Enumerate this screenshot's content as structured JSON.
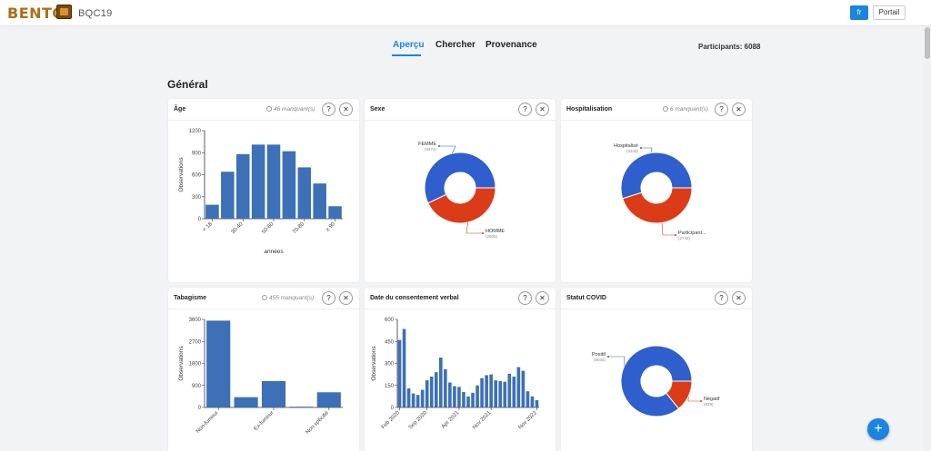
{
  "header": {
    "logo": "BENTO",
    "app_name": "BQC19",
    "lang_button": "fr",
    "portal_button": "Portail"
  },
  "tabs": [
    {
      "label": "Aperçu",
      "active": true
    },
    {
      "label": "Chercher",
      "active": false
    },
    {
      "label": "Provenance",
      "active": false
    }
  ],
  "participants": "Participants: 6088",
  "section_title": "Général",
  "colors": {
    "bar": "#3d70b6",
    "pie_blue": "#2f5fcc",
    "pie_red": "#dc3b17",
    "accent": "#1a84e0"
  },
  "cards": {
    "age": {
      "title": "Âge",
      "missing": "46 manquant(s)"
    },
    "sexe": {
      "title": "Sexe"
    },
    "hosp": {
      "title": "Hospitalisation",
      "missing": "6 manquant(s)"
    },
    "tabac": {
      "title": "Tabagisme",
      "missing": "455 manquant(s)"
    },
    "consent": {
      "title": "Date du consentement verbal"
    },
    "covid": {
      "title": "Statut COVID"
    }
  },
  "buttons": {
    "help": "?",
    "close": "✕",
    "fab": "+"
  },
  "chart_data": [
    {
      "id": "age",
      "type": "bar",
      "categories": [
        "< 18",
        "",
        "30-40",
        "",
        "50-60",
        "",
        "70-80",
        "",
        "≥ 90"
      ],
      "values": [
        190,
        640,
        880,
        1010,
        1010,
        920,
        700,
        480,
        170
      ],
      "ylim": [
        0,
        1200
      ],
      "yticks": [
        0,
        300,
        600,
        900,
        1200
      ],
      "ylabel": "Observations",
      "xlabel": "années"
    },
    {
      "id": "sexe",
      "type": "pie",
      "slices": [
        {
          "label": "FEMME",
          "value": 3474,
          "display": "(3474)"
        },
        {
          "label": "HOMME",
          "value": 2606,
          "display": "(2606)"
        }
      ]
    },
    {
      "id": "hosp",
      "type": "pie",
      "slices": [
        {
          "label": "Hospitalisé",
          "value": 3340,
          "display": "(3340)"
        },
        {
          "label": "Participant...",
          "value": 2742,
          "display": "(2742)"
        }
      ]
    },
    {
      "id": "tabac",
      "type": "bar",
      "categories": [
        "Non-fumeur",
        "",
        "Ex-fumeur",
        "",
        "Non spécifié"
      ],
      "values": [
        3550,
        420,
        1080,
        30,
        620
      ],
      "ylim": [
        0,
        3600
      ],
      "yticks": [
        0,
        900,
        1800,
        2700,
        3600
      ],
      "ylabel": "Observations"
    },
    {
      "id": "consent",
      "type": "bar",
      "values": [
        460,
        535,
        130,
        95,
        85,
        120,
        185,
        210,
        240,
        340,
        260,
        170,
        145,
        140,
        105,
        75,
        100,
        150,
        200,
        220,
        225,
        185,
        180,
        175,
        230,
        210,
        275,
        250,
        110,
        75,
        50
      ],
      "xticks": [
        {
          "label": "Feb 2020",
          "index": 0
        },
        {
          "label": "Sep 2020",
          "index": 6
        },
        {
          "label": "Apr 2021",
          "index": 13
        },
        {
          "label": "Nov 2021",
          "index": 20
        },
        {
          "label": "Nov 2022",
          "index": 30
        }
      ],
      "ylim": [
        0,
        600
      ],
      "yticks": [
        0,
        150,
        300,
        450,
        600
      ],
      "ylabel": "Observations"
    },
    {
      "id": "covid",
      "type": "pie",
      "slices": [
        {
          "label": "Positif",
          "value": 5034,
          "display": "(5034)"
        },
        {
          "label": "Négatif",
          "value": 829,
          "display": "(829)"
        }
      ]
    }
  ]
}
